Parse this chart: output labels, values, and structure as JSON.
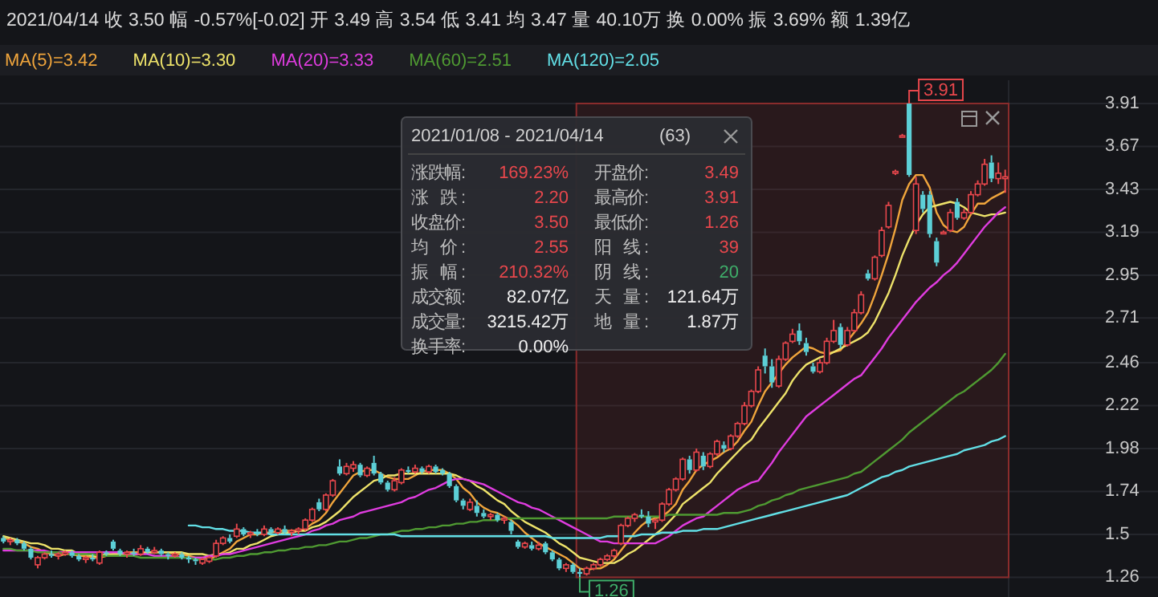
{
  "chart_data": {
    "type": "candlestick",
    "title": "2021/04/14 收 3.50 幅 -0.57%[-0.02] 开 3.49 高 3.54 低 3.41 均 3.47 量 40.10万 换 0.00% 振 3.69% 额 1.39亿",
    "categories": [
      null,
      null,
      null,
      null,
      null,
      null,
      null,
      null,
      null,
      null,
      null,
      null,
      null,
      null,
      null,
      null,
      null,
      null,
      null,
      null,
      null,
      null,
      null,
      null,
      null,
      null,
      null,
      null,
      null,
      null,
      null,
      null,
      null,
      null,
      null,
      null,
      null,
      null,
      null,
      null,
      null,
      null,
      null,
      null,
      null,
      null,
      null,
      null,
      null,
      null,
      null,
      null,
      null,
      null,
      null,
      null,
      null,
      null,
      null,
      null,
      null,
      null,
      null,
      null,
      null,
      null,
      null,
      null,
      null,
      null,
      null,
      null,
      null,
      null,
      null,
      null,
      null,
      null,
      null,
      null,
      null,
      null,
      null,
      null,
      null,
      null,
      null,
      null,
      null,
      null,
      null,
      null,
      null,
      null,
      null,
      null,
      null,
      null,
      null,
      null,
      null,
      null,
      null,
      null,
      null,
      null,
      null,
      null,
      null,
      null,
      null,
      null,
      null,
      null,
      null,
      null,
      null,
      null,
      null,
      null,
      null,
      null,
      null,
      null,
      null,
      null,
      null,
      null,
      null,
      null,
      null,
      null,
      null,
      null,
      null,
      null,
      null,
      null,
      null,
      null,
      null,
      null,
      null,
      null,
      null,
      null,
      null
    ],
    "ohlc": [
      [
        1.48,
        1.49,
        1.45,
        1.46
      ],
      [
        1.46,
        1.48,
        1.44,
        1.47
      ],
      [
        1.47,
        1.48,
        1.44,
        1.45
      ],
      [
        1.45,
        1.46,
        1.41,
        1.42
      ],
      [
        1.42,
        1.43,
        1.36,
        1.37
      ],
      [
        1.33,
        1.38,
        1.31,
        1.37
      ],
      [
        1.37,
        1.4,
        1.36,
        1.39
      ],
      [
        1.39,
        1.41,
        1.37,
        1.38
      ],
      [
        1.38,
        1.4,
        1.36,
        1.39
      ],
      [
        1.39,
        1.41,
        1.38,
        1.4
      ],
      [
        1.4,
        1.41,
        1.37,
        1.38
      ],
      [
        1.38,
        1.39,
        1.35,
        1.36
      ],
      [
        1.36,
        1.38,
        1.34,
        1.37
      ],
      [
        1.37,
        1.39,
        1.35,
        1.36
      ],
      [
        1.34,
        1.41,
        1.33,
        1.4
      ],
      [
        1.4,
        1.41,
        1.38,
        1.39
      ],
      [
        1.46,
        1.47,
        1.41,
        1.42
      ],
      [
        1.41,
        1.42,
        1.38,
        1.39
      ],
      [
        1.39,
        1.41,
        1.37,
        1.4
      ],
      [
        1.4,
        1.42,
        1.38,
        1.39
      ],
      [
        1.39,
        1.44,
        1.38,
        1.42
      ],
      [
        1.42,
        1.43,
        1.39,
        1.4
      ],
      [
        1.4,
        1.43,
        1.39,
        1.41
      ],
      [
        1.41,
        1.42,
        1.38,
        1.39
      ],
      [
        1.39,
        1.4,
        1.36,
        1.38
      ],
      [
        1.38,
        1.4,
        1.37,
        1.39
      ],
      [
        1.39,
        1.4,
        1.36,
        1.37
      ],
      [
        1.37,
        1.38,
        1.34,
        1.36
      ],
      [
        1.36,
        1.37,
        1.33,
        1.35
      ],
      [
        1.34,
        1.37,
        1.33,
        1.36
      ],
      [
        1.35,
        1.38,
        1.34,
        1.37
      ],
      [
        1.38,
        1.47,
        1.37,
        1.45
      ],
      [
        1.45,
        1.49,
        1.44,
        1.48
      ],
      [
        1.48,
        1.5,
        1.45,
        1.46
      ],
      [
        1.49,
        1.56,
        1.48,
        1.53
      ],
      [
        1.53,
        1.54,
        1.49,
        1.5
      ],
      [
        1.5,
        1.52,
        1.48,
        1.51
      ],
      [
        1.51,
        1.53,
        1.49,
        1.5
      ],
      [
        1.5,
        1.55,
        1.49,
        1.53
      ],
      [
        1.53,
        1.54,
        1.5,
        1.51
      ],
      [
        1.51,
        1.54,
        1.5,
        1.53
      ],
      [
        1.53,
        1.55,
        1.5,
        1.51
      ],
      [
        1.51,
        1.53,
        1.49,
        1.52
      ],
      [
        1.52,
        1.54,
        1.5,
        1.53
      ],
      [
        1.53,
        1.59,
        1.52,
        1.58
      ],
      [
        1.58,
        1.65,
        1.57,
        1.64
      ],
      [
        1.68,
        1.7,
        1.63,
        1.64
      ],
      [
        1.64,
        1.73,
        1.63,
        1.72
      ],
      [
        1.72,
        1.81,
        1.71,
        1.8
      ],
      [
        1.88,
        1.92,
        1.83,
        1.84
      ],
      [
        1.84,
        1.9,
        1.83,
        1.88
      ],
      [
        1.87,
        1.91,
        1.85,
        1.89
      ],
      [
        1.89,
        1.9,
        1.82,
        1.83
      ],
      [
        1.83,
        1.88,
        1.82,
        1.87
      ],
      [
        1.9,
        1.94,
        1.83,
        1.84
      ],
      [
        1.84,
        1.85,
        1.78,
        1.79
      ],
      [
        1.79,
        1.8,
        1.74,
        1.75
      ],
      [
        1.75,
        1.82,
        1.74,
        1.8
      ],
      [
        1.79,
        1.87,
        1.78,
        1.86
      ],
      [
        1.86,
        1.88,
        1.84,
        1.85
      ],
      [
        1.85,
        1.89,
        1.84,
        1.87
      ],
      [
        1.87,
        1.88,
        1.84,
        1.85
      ],
      [
        1.85,
        1.89,
        1.84,
        1.88
      ],
      [
        1.88,
        1.89,
        1.84,
        1.85
      ],
      [
        1.86,
        1.87,
        1.83,
        1.84
      ],
      [
        1.84,
        1.85,
        1.76,
        1.77
      ],
      [
        1.77,
        1.78,
        1.68,
        1.69
      ],
      [
        1.69,
        1.7,
        1.64,
        1.66
      ],
      [
        1.64,
        1.7,
        1.63,
        1.68
      ],
      [
        1.66,
        1.69,
        1.6,
        1.62
      ],
      [
        1.62,
        1.64,
        1.59,
        1.6
      ],
      [
        1.6,
        1.62,
        1.58,
        1.61
      ],
      [
        1.61,
        1.62,
        1.57,
        1.58
      ],
      [
        1.58,
        1.6,
        1.56,
        1.59
      ],
      [
        1.57,
        1.58,
        1.5,
        1.52
      ],
      [
        1.46,
        1.47,
        1.42,
        1.43
      ],
      [
        1.43,
        1.46,
        1.42,
        1.45
      ],
      [
        1.44,
        1.46,
        1.41,
        1.42
      ],
      [
        1.42,
        1.46,
        1.41,
        1.44
      ],
      [
        1.45,
        1.46,
        1.39,
        1.4
      ],
      [
        1.4,
        1.41,
        1.35,
        1.36
      ],
      [
        1.36,
        1.37,
        1.3,
        1.31
      ],
      [
        1.31,
        1.34,
        1.29,
        1.33
      ],
      [
        1.33,
        1.34,
        1.28,
        1.29
      ],
      [
        1.29,
        1.31,
        1.26,
        1.28
      ],
      [
        1.28,
        1.32,
        1.27,
        1.31
      ],
      [
        1.31,
        1.34,
        1.3,
        1.33
      ],
      [
        1.33,
        1.37,
        1.32,
        1.36
      ],
      [
        1.36,
        1.39,
        1.35,
        1.38
      ],
      [
        1.38,
        1.42,
        1.37,
        1.41
      ],
      [
        1.45,
        1.56,
        1.44,
        1.55
      ],
      [
        1.55,
        1.6,
        1.54,
        1.59
      ],
      [
        1.59,
        1.62,
        1.57,
        1.61
      ],
      [
        1.61,
        1.64,
        1.59,
        1.6
      ],
      [
        1.6,
        1.63,
        1.54,
        1.56
      ],
      [
        1.57,
        1.59,
        1.53,
        1.58
      ],
      [
        1.58,
        1.68,
        1.57,
        1.67
      ],
      [
        1.67,
        1.76,
        1.66,
        1.75
      ],
      [
        1.75,
        1.82,
        1.74,
        1.81
      ],
      [
        1.81,
        1.93,
        1.8,
        1.92
      ],
      [
        1.92,
        1.94,
        1.84,
        1.86
      ],
      [
        1.86,
        1.98,
        1.85,
        1.96
      ],
      [
        1.94,
        1.96,
        1.86,
        1.88
      ],
      [
        1.88,
        1.96,
        1.87,
        1.95
      ],
      [
        1.95,
        2.03,
        1.94,
        2.02
      ],
      [
        2.0,
        2.02,
        1.96,
        1.98
      ],
      [
        1.98,
        2.06,
        1.97,
        2.05
      ],
      [
        2.05,
        2.13,
        2.04,
        2.12
      ],
      [
        2.12,
        2.24,
        2.11,
        2.22
      ],
      [
        2.22,
        2.31,
        2.21,
        2.3
      ],
      [
        2.3,
        2.44,
        2.29,
        2.42
      ],
      [
        2.5,
        2.54,
        2.4,
        2.44
      ],
      [
        2.44,
        2.48,
        2.32,
        2.35
      ],
      [
        2.33,
        2.5,
        2.32,
        2.48
      ],
      [
        2.48,
        2.58,
        2.47,
        2.57
      ],
      [
        2.58,
        2.65,
        2.57,
        2.62
      ],
      [
        2.64,
        2.68,
        2.56,
        2.58
      ],
      [
        2.57,
        2.6,
        2.5,
        2.52
      ],
      [
        2.44,
        2.46,
        2.4,
        2.41
      ],
      [
        2.41,
        2.48,
        2.4,
        2.46
      ],
      [
        2.46,
        2.6,
        2.45,
        2.58
      ],
      [
        2.58,
        2.7,
        2.57,
        2.64
      ],
      [
        2.66,
        2.68,
        2.54,
        2.56
      ],
      [
        2.56,
        2.66,
        2.55,
        2.64
      ],
      [
        2.64,
        2.76,
        2.63,
        2.74
      ],
      [
        2.74,
        2.86,
        2.73,
        2.84
      ],
      [
        2.96,
        2.98,
        2.92,
        2.93
      ],
      [
        2.93,
        3.06,
        2.92,
        3.05
      ],
      [
        3.06,
        3.22,
        3.05,
        3.2
      ],
      [
        3.22,
        3.36,
        3.21,
        3.34
      ],
      [
        3.52,
        3.54,
        3.51,
        3.53
      ],
      [
        3.73,
        3.74,
        3.72,
        3.73
      ],
      [
        3.91,
        3.91,
        3.5,
        3.51
      ],
      [
        3.2,
        3.5,
        3.18,
        3.46
      ],
      [
        3.4,
        3.42,
        3.3,
        3.32
      ],
      [
        3.4,
        3.42,
        3.16,
        3.18
      ],
      [
        3.14,
        3.16,
        3.0,
        3.02
      ],
      [
        3.19,
        3.2,
        3.18,
        3.19
      ],
      [
        3.2,
        3.32,
        3.19,
        3.3
      ],
      [
        3.36,
        3.38,
        3.26,
        3.27
      ],
      [
        3.27,
        3.32,
        3.26,
        3.3
      ],
      [
        3.3,
        3.42,
        3.29,
        3.4
      ],
      [
        3.4,
        3.48,
        3.39,
        3.46
      ],
      [
        3.46,
        3.6,
        3.45,
        3.57
      ],
      [
        3.58,
        3.62,
        3.47,
        3.49
      ],
      [
        3.49,
        3.58,
        3.46,
        3.52
      ],
      [
        3.49,
        3.54,
        3.41,
        3.5
      ]
    ],
    "colors": [
      "#5ccfd6",
      "#e8474c",
      "#5ccfd6",
      "#5ccfd6",
      "#5ccfd6",
      "#e8474c",
      "#e8474c",
      "#5ccfd6",
      "#e8474c",
      "#e8474c",
      "#5ccfd6",
      "#5ccfd6",
      "#e8474c",
      "#5ccfd6",
      "#e8474c",
      "#5ccfd6",
      "#5ccfd6",
      "#5ccfd6",
      "#e8474c",
      "#5ccfd6",
      "#e8474c",
      "#5ccfd6",
      "#e8474c",
      "#5ccfd6",
      "#5ccfd6",
      "#e8474c",
      "#5ccfd6",
      "#5ccfd6",
      "#5ccfd6",
      "#e8474c",
      "#e8474c",
      "#e8474c",
      "#e8474c",
      "#5ccfd6",
      "#e8474c",
      "#5ccfd6",
      "#e8474c",
      "#5ccfd6",
      "#e8474c",
      "#5ccfd6",
      "#e8474c",
      "#5ccfd6",
      "#e8474c",
      "#e8474c",
      "#e8474c",
      "#e8474c",
      "#5ccfd6",
      "#e8474c",
      "#e8474c",
      "#5ccfd6",
      "#e8474c",
      "#e8474c",
      "#5ccfd6",
      "#e8474c",
      "#5ccfd6",
      "#5ccfd6",
      "#5ccfd6",
      "#e8474c",
      "#e8474c",
      "#5ccfd6",
      "#e8474c",
      "#5ccfd6",
      "#e8474c",
      "#5ccfd6",
      "#5ccfd6",
      "#5ccfd6",
      "#5ccfd6",
      "#5ccfd6",
      "#e8474c",
      "#5ccfd6",
      "#5ccfd6",
      "#e8474c",
      "#5ccfd6",
      "#e8474c",
      "#5ccfd6",
      "#5ccfd6",
      "#e8474c",
      "#5ccfd6",
      "#e8474c",
      "#5ccfd6",
      "#5ccfd6",
      "#5ccfd6",
      "#e8474c",
      "#5ccfd6",
      "#5ccfd6",
      "#e8474c",
      "#e8474c",
      "#e8474c",
      "#e8474c",
      "#e8474c",
      "#e8474c",
      "#e8474c",
      "#e8474c",
      "#5ccfd6",
      "#5ccfd6",
      "#e8474c",
      "#e8474c",
      "#e8474c",
      "#e8474c",
      "#e8474c",
      "#5ccfd6",
      "#e8474c",
      "#5ccfd6",
      "#e8474c",
      "#e8474c",
      "#5ccfd6",
      "#e8474c",
      "#e8474c",
      "#e8474c",
      "#e8474c",
      "#e8474c",
      "#5ccfd6",
      "#5ccfd6",
      "#e8474c",
      "#e8474c",
      "#e8474c",
      "#5ccfd6",
      "#5ccfd6",
      "#5ccfd6",
      "#e8474c",
      "#e8474c",
      "#e8474c",
      "#5ccfd6",
      "#e8474c",
      "#e8474c",
      "#e8474c",
      "#5ccfd6",
      "#e8474c",
      "#e8474c",
      "#e8474c",
      "#e8474c",
      "#e8474c",
      "#5ccfd6",
      "#e8474c",
      "#5ccfd6",
      "#5ccfd6",
      "#5ccfd6",
      "#e8474c",
      "#e8474c",
      "#5ccfd6",
      "#e8474c",
      "#e8474c",
      "#e8474c",
      "#e8474c",
      "#5ccfd6",
      "#e8474c",
      "#e8474c"
    ],
    "series": [
      {
        "name": "MA(5)=3.42",
        "type": "line",
        "color": "#f0a53c",
        "values": [
          1.48,
          1.47,
          1.46,
          1.45,
          1.43,
          1.42,
          1.4,
          1.39,
          1.38,
          1.39,
          1.39,
          1.38,
          1.38,
          1.37,
          1.37,
          1.38,
          1.39,
          1.39,
          1.4,
          1.4,
          1.4,
          1.4,
          1.4,
          1.4,
          1.4,
          1.39,
          1.39,
          1.38,
          1.37,
          1.37,
          1.36,
          1.38,
          1.4,
          1.42,
          1.46,
          1.48,
          1.5,
          1.5,
          1.51,
          1.51,
          1.52,
          1.52,
          1.52,
          1.52,
          1.53,
          1.56,
          1.58,
          1.62,
          1.68,
          1.73,
          1.78,
          1.83,
          1.85,
          1.86,
          1.86,
          1.84,
          1.82,
          1.81,
          1.81,
          1.81,
          1.83,
          1.85,
          1.86,
          1.86,
          1.86,
          1.84,
          1.81,
          1.76,
          1.73,
          1.68,
          1.65,
          1.63,
          1.62,
          1.6,
          1.58,
          1.55,
          1.51,
          1.48,
          1.45,
          1.43,
          1.41,
          1.39,
          1.37,
          1.34,
          1.31,
          1.3,
          1.31,
          1.31,
          1.33,
          1.36,
          1.41,
          1.46,
          1.51,
          1.55,
          1.58,
          1.59,
          1.6,
          1.63,
          1.67,
          1.75,
          1.8,
          1.86,
          1.89,
          1.91,
          1.93,
          1.96,
          1.98,
          2.02,
          2.08,
          2.13,
          2.22,
          2.3,
          2.35,
          2.4,
          2.45,
          2.49,
          2.52,
          2.55,
          2.54,
          2.52,
          2.51,
          2.52,
          2.53,
          2.58,
          2.63,
          2.68,
          2.74,
          2.84,
          2.95,
          3.07,
          3.21,
          3.37,
          3.46,
          3.51,
          3.51,
          3.44,
          3.3,
          3.23,
          3.2,
          3.19,
          3.22,
          3.29,
          3.35,
          3.35,
          3.38,
          3.4,
          3.42
        ]
      },
      {
        "name": "MA(10)=3.30",
        "type": "line",
        "color": "#eee36a",
        "values": [
          1.49,
          1.48,
          1.47,
          1.46,
          1.45,
          1.45,
          1.44,
          1.42,
          1.42,
          1.41,
          1.41,
          1.39,
          1.39,
          1.38,
          1.38,
          1.39,
          1.39,
          1.39,
          1.39,
          1.39,
          1.39,
          1.4,
          1.4,
          1.4,
          1.4,
          1.4,
          1.4,
          1.39,
          1.39,
          1.39,
          1.38,
          1.39,
          1.39,
          1.4,
          1.42,
          1.42,
          1.44,
          1.45,
          1.47,
          1.49,
          1.5,
          1.51,
          1.51,
          1.52,
          1.52,
          1.54,
          1.55,
          1.57,
          1.6,
          1.63,
          1.67,
          1.71,
          1.74,
          1.77,
          1.8,
          1.81,
          1.83,
          1.83,
          1.84,
          1.84,
          1.84,
          1.84,
          1.84,
          1.84,
          1.84,
          1.84,
          1.83,
          1.81,
          1.8,
          1.77,
          1.75,
          1.72,
          1.69,
          1.67,
          1.63,
          1.6,
          1.57,
          1.55,
          1.53,
          1.51,
          1.48,
          1.45,
          1.43,
          1.4,
          1.37,
          1.36,
          1.35,
          1.34,
          1.34,
          1.34,
          1.36,
          1.39,
          1.41,
          1.44,
          1.47,
          1.5,
          1.53,
          1.57,
          1.61,
          1.67,
          1.7,
          1.73,
          1.76,
          1.79,
          1.84,
          1.88,
          1.92,
          1.96,
          2.0,
          2.03,
          2.09,
          2.14,
          2.19,
          2.24,
          2.29,
          2.36,
          2.41,
          2.45,
          2.47,
          2.49,
          2.5,
          2.52,
          2.54,
          2.56,
          2.58,
          2.6,
          2.63,
          2.69,
          2.77,
          2.85,
          2.95,
          3.06,
          3.15,
          3.23,
          3.29,
          3.33,
          3.34,
          3.35,
          3.36,
          3.35,
          3.33,
          3.3,
          3.29,
          3.28,
          3.29,
          3.29,
          3.3
        ]
      },
      {
        "name": "MA(20)=3.33",
        "type": "line",
        "color": "#e03ce0",
        "values": [
          1.41,
          1.41,
          1.41,
          1.41,
          1.41,
          1.41,
          1.41,
          1.4,
          1.4,
          1.4,
          1.4,
          1.4,
          1.4,
          1.4,
          1.4,
          1.4,
          1.4,
          1.4,
          1.39,
          1.39,
          1.39,
          1.39,
          1.38,
          1.38,
          1.38,
          1.38,
          1.37,
          1.37,
          1.37,
          1.37,
          1.38,
          1.38,
          1.39,
          1.39,
          1.4,
          1.41,
          1.42,
          1.43,
          1.44,
          1.45,
          1.46,
          1.47,
          1.48,
          1.49,
          1.5,
          1.52,
          1.53,
          1.55,
          1.56,
          1.58,
          1.59,
          1.6,
          1.62,
          1.63,
          1.64,
          1.65,
          1.66,
          1.67,
          1.68,
          1.7,
          1.71,
          1.73,
          1.75,
          1.76,
          1.78,
          1.8,
          1.81,
          1.81,
          1.8,
          1.79,
          1.78,
          1.76,
          1.74,
          1.72,
          1.7,
          1.68,
          1.67,
          1.65,
          1.64,
          1.62,
          1.6,
          1.58,
          1.56,
          1.54,
          1.52,
          1.5,
          1.48,
          1.46,
          1.46,
          1.45,
          1.45,
          1.45,
          1.45,
          1.45,
          1.45,
          1.45,
          1.47,
          1.49,
          1.52,
          1.55,
          1.57,
          1.59,
          1.6,
          1.63,
          1.66,
          1.69,
          1.72,
          1.75,
          1.77,
          1.79,
          1.8,
          1.85,
          1.9,
          1.96,
          2.01,
          2.06,
          2.11,
          2.16,
          2.19,
          2.22,
          2.25,
          2.28,
          2.31,
          2.34,
          2.37,
          2.39,
          2.44,
          2.49,
          2.54,
          2.6,
          2.65,
          2.7,
          2.75,
          2.8,
          2.84,
          2.88,
          2.91,
          2.95,
          2.98,
          3.02,
          3.07,
          3.12,
          3.17,
          3.22,
          3.26,
          3.3,
          3.33
        ]
      },
      {
        "name": "MA(60)=2.51",
        "type": "line",
        "color": "#4f9a32",
        "values": [
          1.42,
          1.42,
          1.41,
          1.41,
          1.41,
          1.4,
          1.4,
          1.4,
          1.4,
          1.39,
          1.39,
          1.39,
          1.39,
          1.39,
          1.38,
          1.38,
          1.38,
          1.38,
          1.38,
          1.38,
          1.37,
          1.37,
          1.37,
          1.37,
          1.37,
          1.37,
          1.37,
          1.37,
          1.36,
          1.36,
          1.36,
          1.36,
          1.37,
          1.37,
          1.38,
          1.38,
          1.39,
          1.39,
          1.4,
          1.4,
          1.41,
          1.41,
          1.42,
          1.42,
          1.43,
          1.43,
          1.44,
          1.44,
          1.45,
          1.46,
          1.46,
          1.47,
          1.48,
          1.48,
          1.49,
          1.5,
          1.5,
          1.51,
          1.52,
          1.52,
          1.53,
          1.53,
          1.54,
          1.54,
          1.55,
          1.55,
          1.56,
          1.56,
          1.57,
          1.57,
          1.58,
          1.58,
          1.58,
          1.59,
          1.59,
          1.59,
          1.59,
          1.59,
          1.59,
          1.59,
          1.59,
          1.59,
          1.59,
          1.59,
          1.59,
          1.59,
          1.59,
          1.59,
          1.59,
          1.6,
          1.6,
          1.6,
          1.6,
          1.6,
          1.6,
          1.6,
          1.6,
          1.61,
          1.61,
          1.61,
          1.61,
          1.61,
          1.61,
          1.61,
          1.61,
          1.62,
          1.62,
          1.62,
          1.63,
          1.64,
          1.66,
          1.67,
          1.69,
          1.7,
          1.72,
          1.73,
          1.75,
          1.76,
          1.77,
          1.78,
          1.79,
          1.8,
          1.81,
          1.82,
          1.84,
          1.85,
          1.88,
          1.91,
          1.94,
          1.97,
          2.0,
          2.03,
          2.07,
          2.1,
          2.13,
          2.16,
          2.19,
          2.22,
          2.25,
          2.28,
          2.3,
          2.33,
          2.36,
          2.39,
          2.42,
          2.46,
          2.51
        ]
      },
      {
        "name": "MA(120)=2.05",
        "type": "line",
        "color": "#62dfe6",
        "values": [
          null,
          null,
          null,
          null,
          null,
          null,
          null,
          null,
          null,
          null,
          null,
          null,
          null,
          null,
          null,
          null,
          null,
          null,
          null,
          null,
          null,
          null,
          null,
          null,
          null,
          null,
          null,
          1.55,
          1.55,
          1.54,
          1.54,
          1.53,
          1.53,
          1.52,
          1.52,
          1.52,
          1.51,
          1.51,
          1.51,
          1.5,
          1.5,
          1.5,
          1.5,
          1.5,
          1.5,
          1.5,
          1.5,
          1.5,
          1.5,
          1.5,
          1.5,
          1.5,
          1.5,
          1.5,
          1.5,
          1.5,
          1.5,
          1.5,
          1.49,
          1.49,
          1.49,
          1.49,
          1.49,
          1.49,
          1.49,
          1.49,
          1.49,
          1.49,
          1.49,
          1.49,
          1.49,
          1.49,
          1.49,
          1.49,
          1.49,
          1.49,
          1.49,
          1.49,
          1.49,
          1.49,
          1.48,
          1.48,
          1.48,
          1.48,
          1.48,
          1.48,
          1.48,
          1.48,
          1.49,
          1.49,
          1.49,
          1.49,
          1.49,
          1.5,
          1.5,
          1.5,
          1.51,
          1.51,
          1.51,
          1.52,
          1.52,
          1.52,
          1.53,
          1.53,
          1.53,
          1.54,
          1.55,
          1.56,
          1.57,
          1.58,
          1.59,
          1.6,
          1.61,
          1.62,
          1.63,
          1.64,
          1.65,
          1.66,
          1.67,
          1.68,
          1.69,
          1.7,
          1.71,
          1.72,
          1.74,
          1.76,
          1.78,
          1.8,
          1.82,
          1.83,
          1.85,
          1.86,
          1.88,
          1.89,
          1.9,
          1.91,
          1.92,
          1.93,
          1.94,
          1.95,
          1.97,
          1.98,
          1.99,
          2.0,
          2.02,
          2.03,
          2.05
        ]
      }
    ],
    "ylim": [
      1.15,
      4.04
    ],
    "yticks": [
      3.91,
      3.67,
      3.43,
      3.19,
      2.95,
      2.71,
      2.46,
      2.22,
      1.98,
      1.74,
      1.5,
      1.26
    ],
    "grid": "y",
    "legend": "top",
    "annotations": [
      "3.91",
      "1.26",
      "2021/01/08 - 2021/04/14",
      "(63)",
      "涨跌幅:",
      "169.23%",
      "开盘价:",
      "3.49",
      "涨 跌:",
      "2.20",
      "最高价:",
      "3.91",
      "收盘价:",
      "3.50",
      "最低价:",
      "1.26",
      "均 价:",
      "2.55",
      "阳 线:",
      "39",
      "振 幅:",
      "210.32%",
      "阴 线:",
      "20",
      "成交额:",
      "82.07亿",
      "天 量:",
      "121.64万",
      "成交量:",
      "3215.42万",
      "地 量:",
      "1.87万",
      "换手率:",
      "0.00%"
    ]
  }
}
